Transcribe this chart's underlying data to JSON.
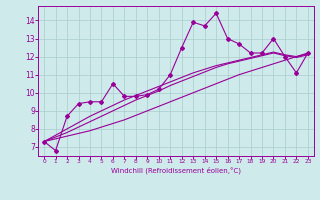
{
  "xlabel": "Windchill (Refroidissement éolien,°C)",
  "xlim": [
    -0.5,
    23.5
  ],
  "ylim": [
    6.5,
    14.8
  ],
  "yticks": [
    7,
    8,
    9,
    10,
    11,
    12,
    13,
    14
  ],
  "xticks": [
    0,
    1,
    2,
    3,
    4,
    5,
    6,
    7,
    8,
    9,
    10,
    11,
    12,
    13,
    14,
    15,
    16,
    17,
    18,
    19,
    20,
    21,
    22,
    23
  ],
  "bg_color": "#ceeaea",
  "line_color": "#990099",
  "grid_color": "#aacccc",
  "s1_y": [
    7.3,
    6.8,
    8.7,
    9.4,
    9.5,
    9.5,
    10.5,
    9.8,
    9.8,
    9.9,
    10.2,
    11.0,
    12.5,
    13.9,
    13.7,
    14.4,
    13.0,
    12.7,
    12.2,
    12.2,
    13.0,
    12.0,
    11.1,
    12.2
  ],
  "s2_y": [
    7.3,
    7.45,
    7.6,
    7.75,
    7.9,
    8.1,
    8.3,
    8.5,
    8.75,
    9.0,
    9.25,
    9.5,
    9.75,
    10.0,
    10.25,
    10.5,
    10.75,
    11.0,
    11.2,
    11.4,
    11.6,
    11.8,
    12.0,
    12.2
  ],
  "s3_y": [
    7.3,
    7.55,
    7.8,
    8.1,
    8.4,
    8.7,
    9.0,
    9.3,
    9.6,
    9.85,
    10.1,
    10.4,
    10.65,
    10.9,
    11.15,
    11.4,
    11.6,
    11.75,
    11.9,
    12.05,
    12.2,
    12.05,
    11.95,
    12.1
  ],
  "s4_y": [
    7.3,
    7.65,
    8.0,
    8.35,
    8.7,
    9.0,
    9.3,
    9.6,
    9.85,
    10.1,
    10.35,
    10.6,
    10.85,
    11.1,
    11.3,
    11.5,
    11.65,
    11.8,
    11.95,
    12.1,
    12.25,
    12.1,
    12.0,
    12.15
  ]
}
